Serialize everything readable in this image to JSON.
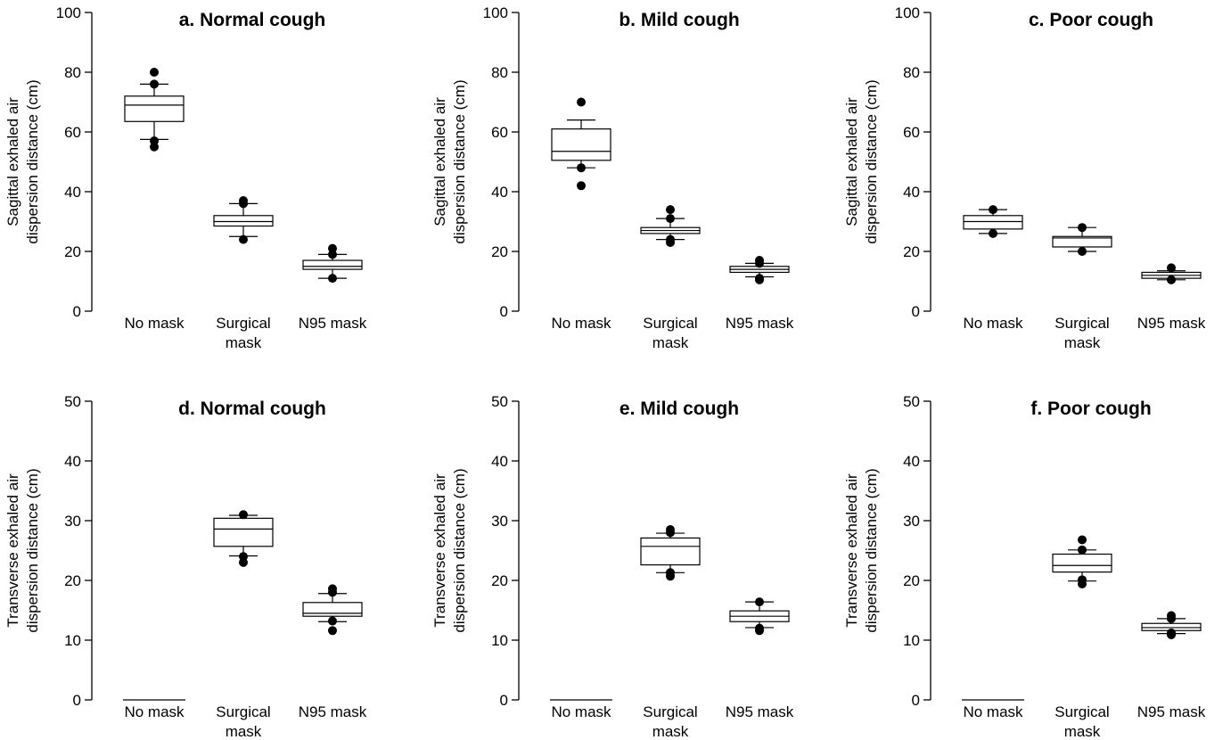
{
  "chart_data": [
    {
      "type": "box",
      "title": "a. Normal cough",
      "ylabel": [
        "Sagittal exhaled air",
        "dispersion distance (cm)"
      ],
      "ylim": [
        0,
        100
      ],
      "yticks": [
        0,
        20,
        40,
        60,
        80,
        100
      ],
      "categories": [
        [
          "No mask"
        ],
        [
          "Surgical",
          "mask"
        ],
        [
          "N95 mask"
        ]
      ],
      "boxes": [
        {
          "q1": 63.5,
          "median": 69,
          "q3": 72,
          "whisker_low": 57.5,
          "whisker_high": 76,
          "outliers": [
            80,
            76,
            57,
            55
          ]
        },
        {
          "q1": 28.5,
          "median": 30,
          "q3": 32,
          "whisker_low": 25,
          "whisker_high": 36,
          "outliers": [
            37,
            36,
            24
          ]
        },
        {
          "q1": 14,
          "median": 15,
          "q3": 17,
          "whisker_low": 11,
          "whisker_high": 19,
          "outliers": [
            21,
            19,
            11
          ]
        }
      ]
    },
    {
      "type": "box",
      "title": "b. Mild cough",
      "ylabel": [
        "Sagittal exhaled air",
        "dispersion distance (cm)"
      ],
      "ylim": [
        0,
        100
      ],
      "yticks": [
        0,
        20,
        40,
        60,
        80,
        100
      ],
      "categories": [
        [
          "No mask"
        ],
        [
          "Surgical",
          "mask"
        ],
        [
          "N95 mask"
        ]
      ],
      "boxes": [
        {
          "q1": 50.5,
          "median": 53.5,
          "q3": 61,
          "whisker_low": 48,
          "whisker_high": 64,
          "outliers": [
            70,
            48,
            42
          ]
        },
        {
          "q1": 26,
          "median": 27,
          "q3": 28,
          "whisker_low": 24,
          "whisker_high": 31,
          "outliers": [
            34,
            31,
            24,
            23
          ]
        },
        {
          "q1": 13,
          "median": 14,
          "q3": 15,
          "whisker_low": 11.5,
          "whisker_high": 16,
          "outliers": [
            17,
            16,
            11,
            10.5
          ]
        }
      ]
    },
    {
      "type": "box",
      "title": "c. Poor cough",
      "ylabel": [
        "Sagittal exhaled air",
        "dispersion distance (cm)"
      ],
      "ylim": [
        0,
        100
      ],
      "yticks": [
        0,
        20,
        40,
        60,
        80,
        100
      ],
      "categories": [
        [
          "No mask"
        ],
        [
          "Surgical",
          "mask"
        ],
        [
          "N95 mask"
        ]
      ],
      "boxes": [
        {
          "q1": 27.5,
          "median": 30,
          "q3": 32,
          "whisker_low": 26,
          "whisker_high": 34,
          "outliers": [
            34,
            26
          ]
        },
        {
          "q1": 21.5,
          "median": 24.5,
          "q3": 25,
          "whisker_low": 20,
          "whisker_high": 28,
          "outliers": [
            28,
            20
          ]
        },
        {
          "q1": 11,
          "median": 12,
          "q3": 13,
          "whisker_low": 10.5,
          "whisker_high": 13.5,
          "outliers": [
            14.5,
            10.5
          ]
        }
      ]
    },
    {
      "type": "box",
      "title": "d. Normal cough",
      "ylabel": [
        "Transverse exhaled air",
        "dispersion distance (cm)"
      ],
      "ylim": [
        0,
        50
      ],
      "yticks": [
        0,
        10,
        20,
        30,
        40,
        50
      ],
      "categories": [
        [
          "No mask"
        ],
        [
          "Surgical",
          "mask"
        ],
        [
          "N95 mask"
        ]
      ],
      "boxes": [
        {
          "flat": 0
        },
        {
          "q1": 25.7,
          "median": 28.6,
          "q3": 30.4,
          "whisker_low": 24.1,
          "whisker_high": 30.9,
          "outliers": [
            31,
            24,
            23
          ]
        },
        {
          "q1": 14,
          "median": 14.5,
          "q3": 16.3,
          "whisker_low": 13.1,
          "whisker_high": 17.8,
          "outliers": [
            18.6,
            18,
            13.2,
            11.6
          ]
        }
      ]
    },
    {
      "type": "box",
      "title": "e. Mild cough",
      "ylabel": [
        "Transverse exhaled air",
        "dispersion distance (cm)"
      ],
      "ylim": [
        0,
        50
      ],
      "yticks": [
        0,
        10,
        20,
        30,
        40,
        50
      ],
      "categories": [
        [
          "No mask"
        ],
        [
          "Surgical",
          "mask"
        ],
        [
          "N95 mask"
        ]
      ],
      "boxes": [
        {
          "flat": 0
        },
        {
          "q1": 22.6,
          "median": 25.7,
          "q3": 27.1,
          "whisker_low": 21.3,
          "whisker_high": 27.9,
          "outliers": [
            28.5,
            28,
            21.3,
            20.7
          ]
        },
        {
          "q1": 13.1,
          "median": 14,
          "q3": 14.9,
          "whisker_low": 12.1,
          "whisker_high": 16.4,
          "outliers": [
            16.4,
            12,
            11.6
          ]
        }
      ]
    },
    {
      "type": "box",
      "title": "f. Poor cough",
      "ylabel": [
        "Transverse exhaled air",
        "dispersion distance (cm)"
      ],
      "ylim": [
        0,
        50
      ],
      "yticks": [
        0,
        10,
        20,
        30,
        40,
        50
      ],
      "categories": [
        [
          "No mask"
        ],
        [
          "Surgical",
          "mask"
        ],
        [
          "N95 mask"
        ]
      ],
      "boxes": [
        {
          "flat": 0
        },
        {
          "q1": 21.4,
          "median": 22.5,
          "q3": 24.4,
          "whisker_low": 19.9,
          "whisker_high": 25.1,
          "outliers": [
            26.8,
            25.1,
            20.1,
            19.4
          ]
        },
        {
          "q1": 11.6,
          "median": 12.1,
          "q3": 12.8,
          "whisker_low": 11.1,
          "whisker_high": 13.6,
          "outliers": [
            14.1,
            13.6,
            11.2,
            10.9
          ]
        }
      ]
    }
  ]
}
